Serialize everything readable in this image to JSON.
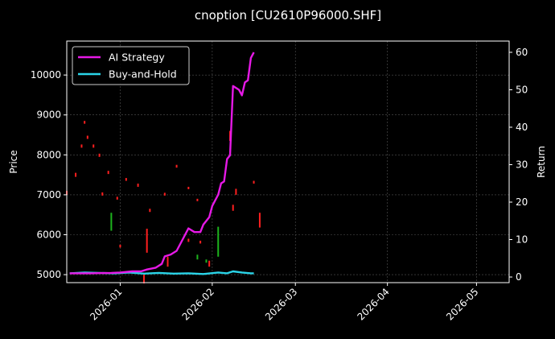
{
  "chart_data": {
    "type": "line",
    "title": "cnoption [CU2610P96000.SHF]",
    "xlabel": "",
    "ylabel": "Price",
    "y2label": "Return",
    "xlim": [
      "2025-12-14",
      "2026-05-12"
    ],
    "ylim": [
      4800,
      10850
    ],
    "y2lim": [
      -1.5,
      63
    ],
    "x_ticks": [
      {
        "date": "2026-01-01",
        "label": "2026-01"
      },
      {
        "date": "2026-02-01",
        "label": "2026-02"
      },
      {
        "date": "2026-03-01",
        "label": "2026-03"
      },
      {
        "date": "2026-04-01",
        "label": "2026-04"
      },
      {
        "date": "2026-05-01",
        "label": "2026-05"
      }
    ],
    "y_ticks": [
      5000,
      6000,
      7000,
      8000,
      9000,
      10000
    ],
    "y2_ticks": [
      0,
      10,
      20,
      30,
      40,
      50,
      60
    ],
    "grid": true,
    "legend": "top-left",
    "colors": {
      "background": "#000000",
      "foreground": "#ffffff",
      "grid": "#555555",
      "up": "#1db31d",
      "down": "#ff1f1f"
    },
    "series": [
      {
        "name": "AI Strategy",
        "axis": "right",
        "color": "#e619e6",
        "points": [
          [
            "2025-12-15",
            1.0
          ],
          [
            "2025-12-22",
            1.0
          ],
          [
            "2025-12-29",
            1.1
          ],
          [
            "2026-01-01",
            1.2
          ],
          [
            "2026-01-05",
            1.5
          ],
          [
            "2026-01-08",
            1.5
          ],
          [
            "2026-01-10",
            2.0
          ],
          [
            "2026-01-13",
            2.5
          ],
          [
            "2026-01-15",
            3.5
          ],
          [
            "2026-01-16",
            5.5
          ],
          [
            "2026-01-18",
            6.0
          ],
          [
            "2026-01-20",
            7.0
          ],
          [
            "2026-01-22",
            10.0
          ],
          [
            "2026-01-24",
            13.0
          ],
          [
            "2026-01-26",
            12.0
          ],
          [
            "2026-01-28",
            12.0
          ],
          [
            "2026-01-29",
            14.0
          ],
          [
            "2026-01-31",
            16.0
          ],
          [
            "2026-02-01",
            19.0
          ],
          [
            "2026-02-03",
            22.0
          ],
          [
            "2026-02-04",
            25.0
          ],
          [
            "2026-02-05",
            25.5
          ],
          [
            "2026-02-06",
            31.5
          ],
          [
            "2026-02-07",
            32.5
          ],
          [
            "2026-02-08",
            51.0
          ],
          [
            "2026-02-10",
            50.0
          ],
          [
            "2026-02-11",
            48.5
          ],
          [
            "2026-02-12",
            52.0
          ],
          [
            "2026-02-13",
            52.5
          ],
          [
            "2026-02-14",
            58.5
          ],
          [
            "2026-02-15",
            60.0
          ]
        ]
      },
      {
        "name": "Buy-and-Hold",
        "axis": "right",
        "color": "#2ad4e8",
        "points": [
          [
            "2025-12-15",
            1.0
          ],
          [
            "2025-12-20",
            1.2
          ],
          [
            "2025-12-25",
            1.1
          ],
          [
            "2025-12-30",
            1.0
          ],
          [
            "2026-01-04",
            1.2
          ],
          [
            "2026-01-09",
            0.9
          ],
          [
            "2026-01-14",
            1.1
          ],
          [
            "2026-01-19",
            0.9
          ],
          [
            "2026-01-24",
            1.0
          ],
          [
            "2026-01-29",
            0.8
          ],
          [
            "2026-02-03",
            1.2
          ],
          [
            "2026-02-06",
            1.0
          ],
          [
            "2026-02-08",
            1.5
          ],
          [
            "2026-02-11",
            1.2
          ],
          [
            "2026-02-14",
            1.0
          ],
          [
            "2026-02-15",
            1.0
          ]
        ]
      }
    ],
    "candles": [
      {
        "date": "2025-12-14",
        "high": 7100,
        "low": 7000,
        "dir": "down"
      },
      {
        "date": "2025-12-17",
        "high": 7550,
        "low": 7450,
        "dir": "down"
      },
      {
        "date": "2025-12-19",
        "high": 8260,
        "low": 8180,
        "dir": "down"
      },
      {
        "date": "2025-12-20",
        "high": 8850,
        "low": 8780,
        "dir": "down"
      },
      {
        "date": "2025-12-21",
        "high": 8480,
        "low": 8400,
        "dir": "down"
      },
      {
        "date": "2025-12-23",
        "high": 8260,
        "low": 8180,
        "dir": "down"
      },
      {
        "date": "2025-12-25",
        "high": 8030,
        "low": 7950,
        "dir": "down"
      },
      {
        "date": "2025-12-26",
        "high": 7060,
        "low": 6980,
        "dir": "down"
      },
      {
        "date": "2025-12-28",
        "high": 7600,
        "low": 7520,
        "dir": "down"
      },
      {
        "date": "2025-12-29",
        "high": 6550,
        "low": 6100,
        "dir": "up"
      },
      {
        "date": "2025-12-31",
        "high": 6950,
        "low": 6880,
        "dir": "down"
      },
      {
        "date": "2026-01-01",
        "high": 5750,
        "low": 5680,
        "dir": "down"
      },
      {
        "date": "2026-01-03",
        "high": 7420,
        "low": 7350,
        "dir": "down"
      },
      {
        "date": "2026-01-07",
        "high": 7280,
        "low": 7200,
        "dir": "down"
      },
      {
        "date": "2026-01-09",
        "high": 5000,
        "low": 4780,
        "dir": "down"
      },
      {
        "date": "2026-01-10",
        "high": 6150,
        "low": 5550,
        "dir": "down"
      },
      {
        "date": "2026-01-11",
        "high": 6650,
        "low": 6570,
        "dir": "down"
      },
      {
        "date": "2026-01-16",
        "high": 7050,
        "low": 6980,
        "dir": "down"
      },
      {
        "date": "2026-01-17",
        "high": 5450,
        "low": 5200,
        "dir": "down"
      },
      {
        "date": "2026-01-20",
        "high": 7750,
        "low": 7680,
        "dir": "down"
      },
      {
        "date": "2026-01-24",
        "high": 5900,
        "low": 5820,
        "dir": "down"
      },
      {
        "date": "2026-01-24",
        "high": 7200,
        "low": 7140,
        "dir": "down"
      },
      {
        "date": "2026-01-27",
        "high": 5500,
        "low": 5380,
        "dir": "up"
      },
      {
        "date": "2026-01-27",
        "high": 6900,
        "low": 6840,
        "dir": "down"
      },
      {
        "date": "2026-01-28",
        "high": 5850,
        "low": 5780,
        "dir": "down"
      },
      {
        "date": "2026-01-30",
        "high": 5380,
        "low": 5300,
        "dir": "up"
      },
      {
        "date": "2026-01-31",
        "high": 5350,
        "low": 5200,
        "dir": "down"
      },
      {
        "date": "2026-02-03",
        "high": 6200,
        "low": 5450,
        "dir": "up"
      },
      {
        "date": "2026-02-07",
        "high": 8600,
        "low": 8350,
        "dir": "down"
      },
      {
        "date": "2026-02-08",
        "high": 6750,
        "low": 6600,
        "dir": "down"
      },
      {
        "date": "2026-02-09",
        "high": 7150,
        "low": 7000,
        "dir": "down"
      },
      {
        "date": "2026-02-15",
        "high": 7350,
        "low": 7280,
        "dir": "down"
      },
      {
        "date": "2026-02-17",
        "high": 6550,
        "low": 6180,
        "dir": "down"
      }
    ]
  }
}
